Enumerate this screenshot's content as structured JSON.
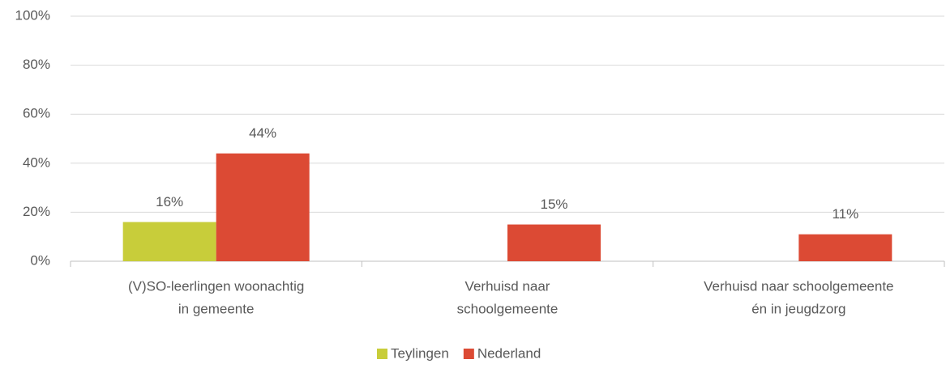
{
  "chart_data": {
    "type": "bar",
    "categories": [
      [
        "(V)SO-leerlingen woonachtig",
        "in gemeente"
      ],
      [
        "Verhuisd naar",
        "schoolgemeente"
      ],
      [
        "Verhuisd naar schoolgemeente",
        "én in jeugdzorg"
      ]
    ],
    "series": [
      {
        "name": "Teylingen",
        "color": "#c8cd3a",
        "values": [
          16,
          null,
          null
        ],
        "value_labels": [
          "16%",
          null,
          null
        ]
      },
      {
        "name": "Nederland",
        "color": "#dc4a34",
        "values": [
          44,
          15,
          11
        ],
        "value_labels": [
          "44%",
          "15%",
          "11%"
        ]
      }
    ],
    "ylim": [
      0,
      100
    ],
    "yticks": [
      {
        "value": 0,
        "label": "0%"
      },
      {
        "value": 20,
        "label": "20%"
      },
      {
        "value": 40,
        "label": "40%"
      },
      {
        "value": 60,
        "label": "60%"
      },
      {
        "value": 80,
        "label": "80%"
      },
      {
        "value": 100,
        "label": "100%"
      }
    ],
    "grid": true,
    "legend": "bottom"
  }
}
